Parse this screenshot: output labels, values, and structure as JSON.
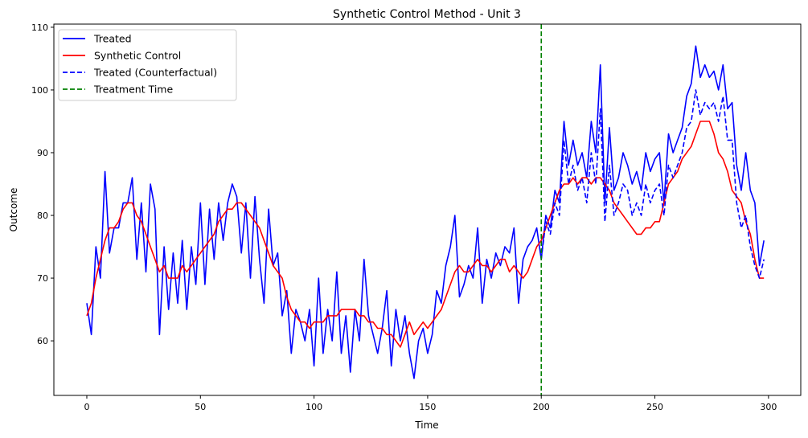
{
  "chart_data": {
    "type": "line",
    "title": "Synthetic Control Method - Unit 3",
    "xlabel": "Time",
    "ylabel": "Outcome",
    "xlim": [
      -14.5,
      314.2
    ],
    "ylim": [
      51.3,
      110.5
    ],
    "xticks": [
      0,
      50,
      100,
      150,
      200,
      250,
      300
    ],
    "yticks": [
      60,
      70,
      80,
      90,
      100,
      110
    ],
    "grid": false,
    "legend_position": "top-left",
    "treatment_time": 200,
    "series": [
      {
        "name": "Treated",
        "color": "#0000ff",
        "style": "solid",
        "x": [
          0,
          2,
          4,
          6,
          8,
          10,
          12,
          14,
          16,
          18,
          20,
          22,
          24,
          26,
          28,
          30,
          32,
          34,
          36,
          38,
          40,
          42,
          44,
          46,
          48,
          50,
          52,
          54,
          56,
          58,
          60,
          62,
          64,
          66,
          68,
          70,
          72,
          74,
          76,
          78,
          80,
          82,
          84,
          86,
          88,
          90,
          92,
          94,
          96,
          98,
          100,
          102,
          104,
          106,
          108,
          110,
          112,
          114,
          116,
          118,
          120,
          122,
          124,
          126,
          128,
          130,
          132,
          134,
          136,
          138,
          140,
          142,
          144,
          146,
          148,
          150,
          152,
          154,
          156,
          158,
          160,
          162,
          164,
          166,
          168,
          170,
          172,
          174,
          176,
          178,
          180,
          182,
          184,
          186,
          188,
          190,
          192,
          194,
          196,
          198,
          200,
          202,
          204,
          206,
          208,
          210,
          212,
          214,
          216,
          218,
          220,
          222,
          224,
          226,
          228,
          230,
          232,
          234,
          236,
          238,
          240,
          242,
          244,
          246,
          248,
          250,
          252,
          254,
          256,
          258,
          260,
          262,
          264,
          266,
          268,
          270,
          272,
          274,
          276,
          278,
          280,
          282,
          284,
          286,
          288,
          290,
          292,
          294,
          296,
          298
        ],
        "y": [
          66,
          61,
          75,
          70,
          87,
          74,
          78,
          78,
          82,
          82,
          86,
          73,
          82,
          71,
          85,
          81,
          61,
          75,
          65,
          74,
          66,
          76,
          65,
          75,
          69,
          82,
          69,
          81,
          73,
          82,
          76,
          82,
          85,
          83,
          74,
          82,
          70,
          83,
          73,
          66,
          81,
          72,
          74,
          64,
          68,
          58,
          65,
          63,
          60,
          65,
          56,
          70,
          58,
          65,
          60,
          71,
          58,
          64,
          55,
          65,
          60,
          73,
          64,
          61,
          58,
          62,
          68,
          56,
          65,
          60,
          64,
          58,
          54,
          60,
          62,
          58,
          61,
          68,
          66,
          72,
          75,
          80,
          67,
          69,
          72,
          70,
          78,
          66,
          73,
          70,
          74,
          72,
          75,
          74,
          78,
          66,
          73,
          75,
          76,
          78,
          73,
          80,
          78,
          84,
          82,
          95,
          88,
          92,
          88,
          90,
          86,
          95,
          90,
          104,
          82,
          94,
          84,
          86,
          90,
          88,
          85,
          87,
          84,
          90,
          87,
          89,
          90,
          82,
          93,
          90,
          92,
          94,
          99,
          101,
          107,
          102,
          104,
          102,
          103,
          100,
          104,
          97,
          98,
          88,
          84,
          90,
          84,
          82,
          72,
          76
        ]
      },
      {
        "name": "Synthetic Control",
        "color": "#ff0000",
        "style": "solid",
        "x": [
          0,
          2,
          4,
          6,
          8,
          10,
          12,
          14,
          16,
          18,
          20,
          22,
          24,
          26,
          28,
          30,
          32,
          34,
          36,
          38,
          40,
          42,
          44,
          46,
          48,
          50,
          52,
          54,
          56,
          58,
          60,
          62,
          64,
          66,
          68,
          70,
          72,
          74,
          76,
          78,
          80,
          82,
          84,
          86,
          88,
          90,
          92,
          94,
          96,
          98,
          100,
          102,
          104,
          106,
          108,
          110,
          112,
          114,
          116,
          118,
          120,
          122,
          124,
          126,
          128,
          130,
          132,
          134,
          136,
          138,
          140,
          142,
          144,
          146,
          148,
          150,
          152,
          154,
          156,
          158,
          160,
          162,
          164,
          166,
          168,
          170,
          172,
          174,
          176,
          178,
          180,
          182,
          184,
          186,
          188,
          190,
          192,
          194,
          196,
          198,
          200,
          202,
          204,
          206,
          208,
          210,
          212,
          214,
          216,
          218,
          220,
          222,
          224,
          226,
          228,
          230,
          232,
          234,
          236,
          238,
          240,
          242,
          244,
          246,
          248,
          250,
          252,
          254,
          256,
          258,
          260,
          262,
          264,
          266,
          268,
          270,
          272,
          274,
          276,
          278,
          280,
          282,
          284,
          286,
          288,
          290,
          292,
          294,
          296,
          298
        ],
        "y": [
          64,
          66,
          70,
          73,
          76,
          78,
          78,
          79,
          81,
          82,
          82,
          80,
          79,
          77,
          75,
          73,
          71,
          72,
          70,
          70,
          70,
          72,
          71,
          72,
          73,
          74,
          75,
          76,
          77,
          79,
          80,
          81,
          81,
          82,
          82,
          81,
          80,
          79,
          78,
          76,
          74,
          72,
          71,
          70,
          67,
          65,
          64,
          63,
          63,
          62,
          63,
          63,
          63,
          64,
          64,
          64,
          65,
          65,
          65,
          65,
          64,
          64,
          63,
          63,
          62,
          62,
          61,
          61,
          60,
          59,
          61,
          63,
          61,
          62,
          63,
          62,
          63,
          64,
          65,
          67,
          69,
          71,
          72,
          71,
          71,
          72,
          73,
          72,
          72,
          71,
          72,
          73,
          73,
          71,
          72,
          71,
          70,
          71,
          73,
          75,
          76,
          78,
          80,
          82,
          84,
          85,
          85,
          86,
          85,
          86,
          86,
          85,
          86,
          86,
          85,
          84,
          82,
          81,
          80,
          79,
          78,
          77,
          77,
          78,
          78,
          79,
          79,
          82,
          85,
          86,
          87,
          89,
          90,
          91,
          93,
          95,
          95,
          95,
          93,
          90,
          89,
          87,
          84,
          83,
          82,
          79,
          77,
          73,
          70,
          70
        ]
      },
      {
        "name": "Treated (Counterfactual)",
        "color": "#0000ff",
        "style": "dashed",
        "x": [
          200,
          202,
          204,
          206,
          208,
          210,
          212,
          214,
          216,
          218,
          220,
          222,
          224,
          226,
          228,
          230,
          232,
          234,
          236,
          238,
          240,
          242,
          244,
          246,
          248,
          250,
          252,
          254,
          256,
          258,
          260,
          262,
          264,
          266,
          268,
          270,
          272,
          274,
          276,
          278,
          280,
          282,
          284,
          286,
          288,
          290,
          292,
          294,
          296,
          298
        ],
        "y": [
          73,
          79,
          77,
          82,
          80,
          92,
          85,
          88,
          84,
          86,
          82,
          90,
          85,
          97,
          79,
          88,
          80,
          82,
          85,
          84,
          80,
          82,
          80,
          85,
          82,
          84,
          85,
          80,
          88,
          86,
          88,
          90,
          94,
          95,
          100,
          96,
          98,
          97,
          98,
          95,
          99,
          92,
          92,
          82,
          78,
          80,
          75,
          72,
          70,
          73
        ]
      },
      {
        "name": "Treatment Time",
        "color": "#008000",
        "style": "dashed"
      }
    ]
  }
}
